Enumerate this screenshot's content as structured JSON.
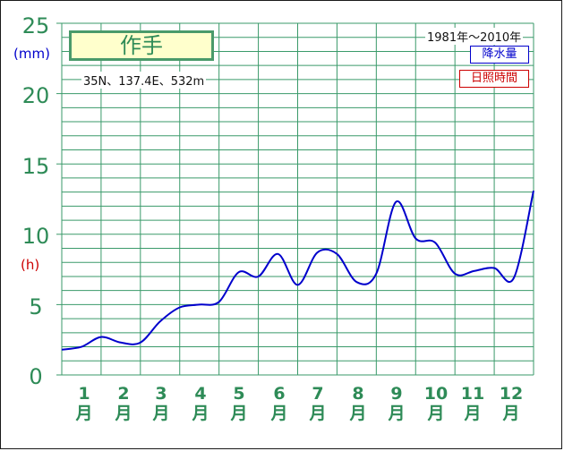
{
  "chart_data": {
    "type": "line",
    "title": "作手",
    "location": "35N、137.4E、532m",
    "period": "1981年～2010年",
    "legend": [
      {
        "label": "降水量",
        "color": "#0000cc"
      },
      {
        "label": "日照時間",
        "color": "#cc0000"
      }
    ],
    "y_ticks": [
      "0",
      "5",
      "10",
      "15",
      "20",
      "25"
    ],
    "y_unit_precip": "(mm)",
    "y_unit_sun": "(h)",
    "ylim": [
      0,
      25
    ],
    "months": [
      [
        "1",
        "月"
      ],
      [
        "2",
        "月"
      ],
      [
        "3",
        "月"
      ],
      [
        "4",
        "月"
      ],
      [
        "5",
        "月"
      ],
      [
        "6",
        "月"
      ],
      [
        "7",
        "月"
      ],
      [
        "8",
        "月"
      ],
      [
        "9",
        "月"
      ],
      [
        "10",
        "月"
      ],
      [
        "11",
        "月"
      ],
      [
        "12",
        "月"
      ]
    ],
    "series": [
      {
        "name": "降水量",
        "color": "#0000cc",
        "x": [
          0.0,
          0.5,
          1.0,
          1.5,
          2.0,
          2.5,
          3.0,
          3.5,
          4.0,
          4.5,
          5.0,
          5.5,
          6.0,
          6.5,
          7.0,
          7.5,
          8.0,
          8.5,
          9.0,
          9.5,
          10.0,
          10.5,
          11.0,
          11.5,
          12.0
        ],
        "values": [
          1.8,
          2.0,
          2.7,
          2.3,
          2.3,
          3.8,
          4.8,
          5.0,
          5.2,
          7.3,
          7.0,
          8.6,
          6.4,
          8.7,
          8.6,
          6.6,
          7.2,
          12.3,
          9.7,
          9.4,
          7.2,
          7.4,
          7.6,
          6.9,
          13.1
        ]
      }
    ]
  }
}
